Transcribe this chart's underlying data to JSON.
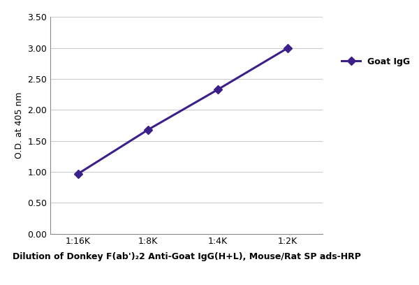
{
  "x_labels": [
    "1:16K",
    "1:8K",
    "1:4K",
    "1:2K"
  ],
  "x_values": [
    1,
    2,
    3,
    4
  ],
  "y_values": [
    0.97,
    1.68,
    2.33,
    3.0
  ],
  "line_color": "#3d1f8a",
  "marker": "D",
  "marker_size": 6,
  "line_width": 2.2,
  "legend_label": "Goat IgG",
  "ylabel": "O.D. at 405 nm",
  "xlabel": "Dilution of Donkey F(ab')₂2 Anti-Goat IgG(H+L), Mouse/Rat SP ads-HRP",
  "ylim": [
    0.0,
    3.5
  ],
  "yticks": [
    0.0,
    0.5,
    1.0,
    1.5,
    2.0,
    2.5,
    3.0,
    3.5
  ],
  "axis_label_fontsize": 9,
  "tick_fontsize": 9,
  "legend_fontsize": 9,
  "background_color": "#ffffff",
  "grid_color": "#cccccc"
}
